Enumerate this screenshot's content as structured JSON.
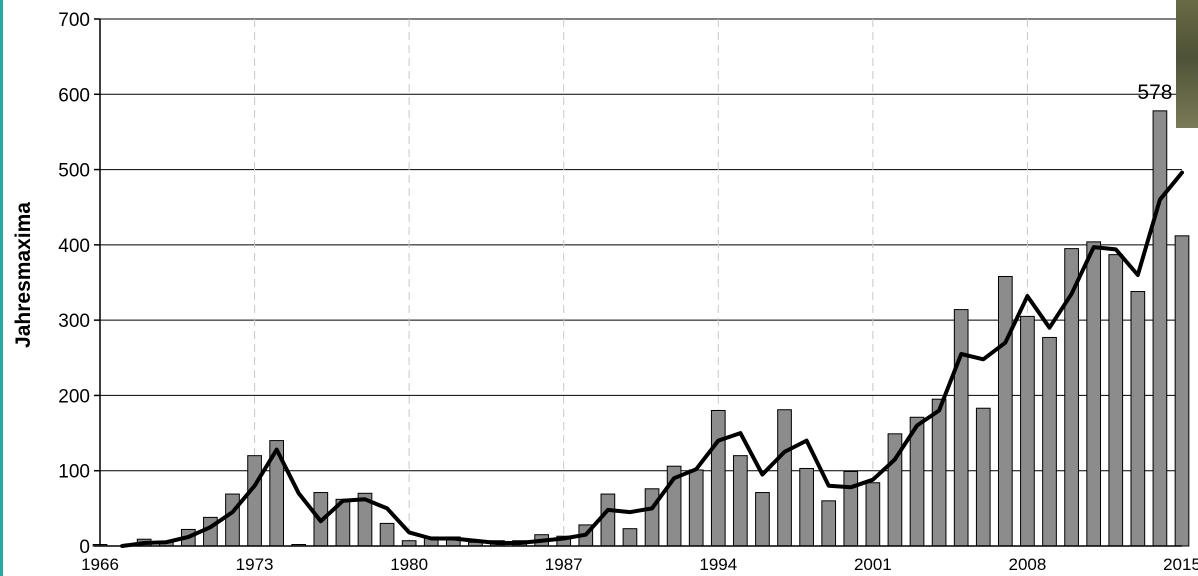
{
  "chart_data": {
    "type": "bar",
    "ylabel": "Jahresmaxima",
    "xlabel": "",
    "ylim": [
      0,
      700
    ],
    "y_ticks": [
      0,
      100,
      200,
      300,
      400,
      500,
      600,
      700
    ],
    "x_tick_years": [
      1966,
      1973,
      1980,
      1987,
      1994,
      2001,
      2008,
      2015
    ],
    "grid": {
      "horizontal": "solid",
      "vertical": "dashed"
    },
    "years": [
      1966,
      1967,
      1968,
      1969,
      1970,
      1971,
      1972,
      1973,
      1974,
      1975,
      1976,
      1977,
      1978,
      1979,
      1980,
      1981,
      1982,
      1983,
      1984,
      1985,
      1986,
      1987,
      1988,
      1989,
      1990,
      1991,
      1992,
      1993,
      1994,
      1995,
      1996,
      1997,
      1998,
      1999,
      2000,
      2001,
      2002,
      2003,
      2004,
      2005,
      2006,
      2007,
      2008,
      2009,
      2010,
      2011,
      2012,
      2013,
      2014,
      2015
    ],
    "series": [
      {
        "type": "bar",
        "color": "#8c8c8c",
        "values": [
          2,
          0,
          9,
          6,
          22,
          38,
          69,
          120,
          140,
          2,
          71,
          62,
          70,
          30,
          7,
          12,
          12,
          5,
          7,
          7,
          15,
          13,
          28,
          69,
          23,
          76,
          106,
          101,
          180,
          120,
          71,
          181,
          103,
          60,
          99,
          84,
          149,
          171,
          195,
          314,
          183,
          358,
          305,
          277,
          395,
          404,
          387,
          338,
          578,
          412
        ]
      },
      {
        "type": "line",
        "color": "#000000",
        "values": [
          null,
          0,
          4,
          5,
          12,
          25,
          45,
          80,
          128,
          70,
          33,
          60,
          62,
          50,
          18,
          10,
          10,
          7,
          4,
          4,
          7,
          10,
          15,
          48,
          45,
          50,
          90,
          102,
          140,
          150,
          95,
          125,
          140,
          80,
          78,
          88,
          115,
          160,
          180,
          255,
          248,
          270,
          332,
          290,
          335,
          397,
          394,
          360,
          460,
          496
        ]
      }
    ],
    "annotations": [
      {
        "year": 2014,
        "text": "578"
      }
    ]
  }
}
